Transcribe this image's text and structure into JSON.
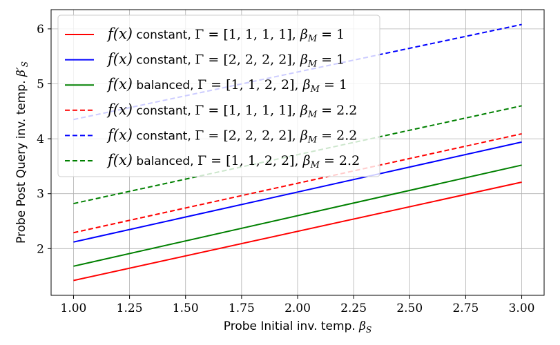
{
  "chart_data": {
    "type": "line",
    "x_label": "Probe Initial inv. temp. βS",
    "y_label": "Probe Post Query inv. temp. β′S",
    "x_label_parts": {
      "text": "Probe Initial inv. temp. ",
      "sym": "β",
      "sub": "S"
    },
    "y_label_parts": {
      "text": "Probe Post Query inv. temp. ",
      "sym": "β′",
      "sub": "S"
    },
    "xlim": [
      0.9,
      3.1
    ],
    "ylim": [
      1.15,
      6.35
    ],
    "x_ticks": [
      1.0,
      1.25,
      1.5,
      1.75,
      2.0,
      2.25,
      2.5,
      2.75,
      3.0
    ],
    "x_tick_labels": [
      "1.00",
      "1.25",
      "1.50",
      "1.75",
      "2.00",
      "2.25",
      "2.50",
      "2.75",
      "3.00"
    ],
    "y_ticks": [
      2,
      3,
      4,
      5,
      6
    ],
    "y_tick_labels": [
      "2",
      "3",
      "4",
      "5",
      "6"
    ],
    "grid": true,
    "legend_position": "top-left",
    "series": [
      {
        "name": "f(x) constant, Γ = [1,1,1,1], βM = 1",
        "fx": "f(x)",
        "mode": "constant",
        "gamma": "[1, 1, 1, 1]",
        "betaM": "1",
        "color": "#ff0000",
        "dash": "solid",
        "x": [
          1.0,
          3.0
        ],
        "y": [
          1.42,
          3.21
        ]
      },
      {
        "name": "f(x) constant, Γ = [2,2,2,2], βM = 1",
        "fx": "f(x)",
        "mode": "constant",
        "gamma": "[2, 2, 2, 2]",
        "betaM": "1",
        "color": "#0000ff",
        "dash": "solid",
        "x": [
          1.0,
          3.0
        ],
        "y": [
          2.12,
          3.94
        ]
      },
      {
        "name": "f(x) balanced, Γ = [1,1,2,2], βM = 1",
        "fx": "f(x)",
        "mode": "balanced",
        "gamma": "[1, 1, 2, 2]",
        "betaM": "1",
        "color": "#008000",
        "dash": "solid",
        "x": [
          1.0,
          3.0
        ],
        "y": [
          1.68,
          3.52
        ]
      },
      {
        "name": "f(x) constant, Γ = [1,1,1,1], βM = 2.2",
        "fx": "f(x)",
        "mode": "constant",
        "gamma": "[1, 1, 1, 1]",
        "betaM": "2.2",
        "color": "#ff0000",
        "dash": "dashed",
        "x": [
          1.0,
          3.0
        ],
        "y": [
          2.29,
          4.09
        ]
      },
      {
        "name": "f(x) constant, Γ = [2,2,2,2], βM = 2.2",
        "fx": "f(x)",
        "mode": "constant",
        "gamma": "[2, 2, 2, 2]",
        "betaM": "2.2",
        "color": "#0000ff",
        "dash": "dashed",
        "x": [
          1.0,
          3.0
        ],
        "y": [
          4.35,
          6.08
        ]
      },
      {
        "name": "f(x) balanced, Γ = [1,1,2,2], βM = 2.2",
        "fx": "f(x)",
        "mode": "balanced",
        "gamma": "[1, 1, 2, 2]",
        "betaM": "2.2",
        "color": "#008000",
        "dash": "dashed",
        "x": [
          1.0,
          3.0
        ],
        "y": [
          2.82,
          4.6
        ]
      }
    ]
  }
}
